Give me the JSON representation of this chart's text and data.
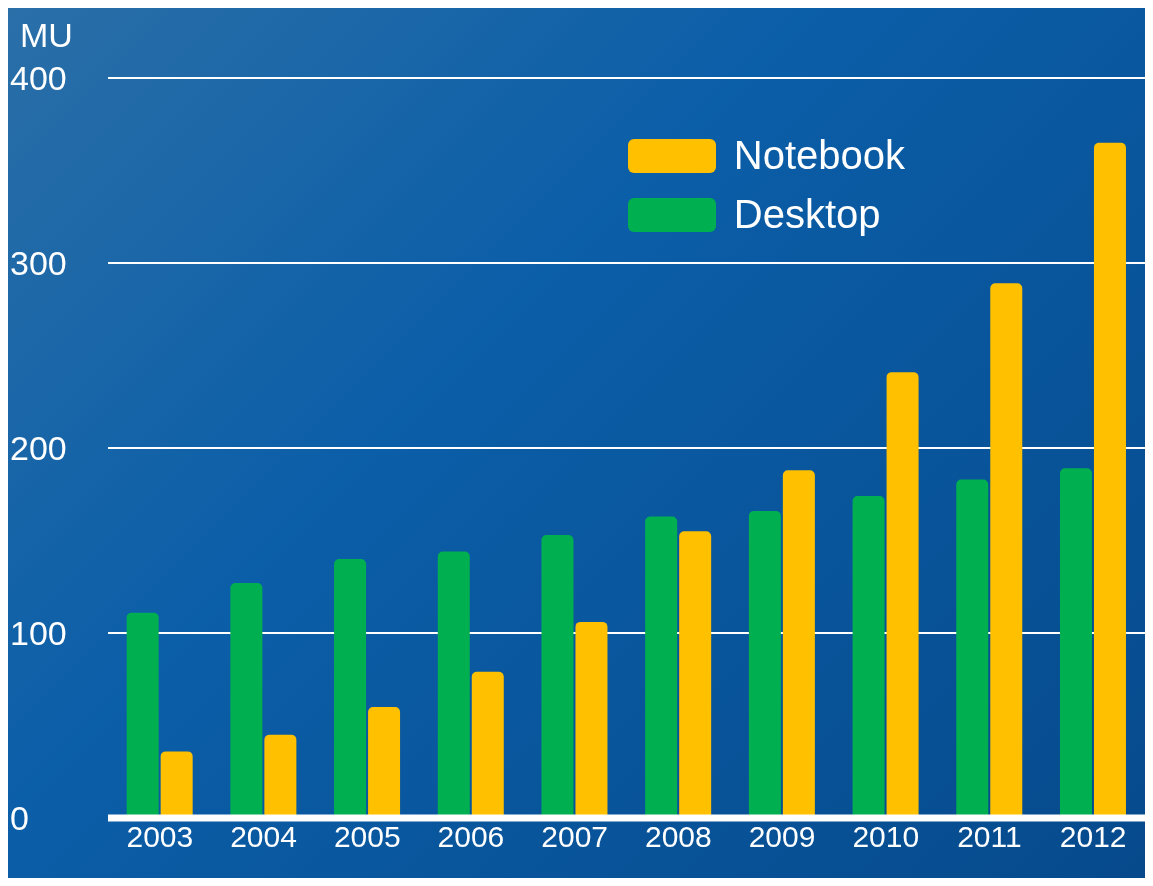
{
  "chart_data": {
    "type": "bar",
    "ylabel": "MU",
    "categories": [
      "2003",
      "2004",
      "2005",
      "2006",
      "2007",
      "2008",
      "2009",
      "2010",
      "2011",
      "2012"
    ],
    "series": [
      {
        "name": "Desktop",
        "color": "#00b050",
        "values": [
          111,
          127,
          140,
          144,
          153,
          163,
          166,
          174,
          183,
          189
        ]
      },
      {
        "name": "Notebook",
        "color": "#ffc000",
        "values": [
          36,
          45,
          60,
          79,
          106,
          155,
          188,
          241,
          289,
          365
        ]
      }
    ],
    "ylim": [
      0,
      400
    ],
    "yticks": [
      0,
      100,
      200,
      300,
      400
    ],
    "grid": "y",
    "legend": "top right"
  }
}
